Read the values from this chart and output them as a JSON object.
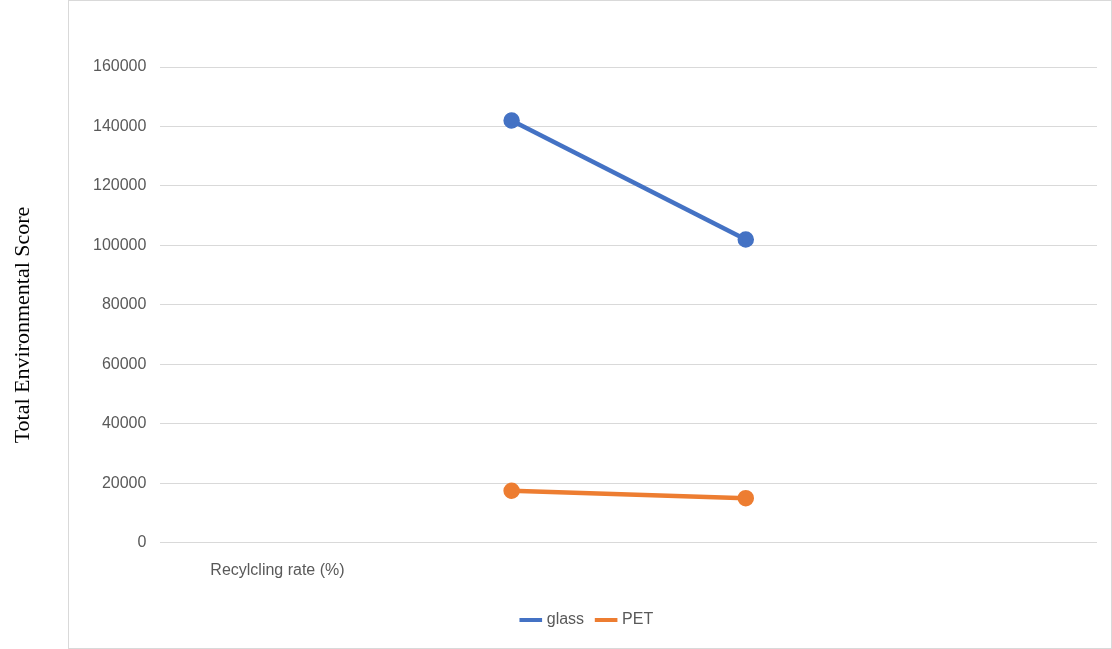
{
  "chart_data": {
    "type": "line",
    "ylabel": "Total Environmental  Score",
    "categories": [
      "Recylcling rate (%)",
      null,
      null,
      null
    ],
    "series": [
      {
        "name": "glass",
        "color": "#4472c4",
        "values": [
          null,
          142000,
          102000,
          null
        ]
      },
      {
        "name": "PET",
        "color": "#ed7d31",
        "values": [
          null,
          17500,
          15000,
          null
        ]
      }
    ],
    "ylim": [
      0,
      160000
    ],
    "yticks": [
      0,
      20000,
      40000,
      60000,
      80000,
      100000,
      120000,
      140000,
      160000
    ],
    "grid": "y",
    "legend": "bottom",
    "marker": "circle",
    "line_style": "solid"
  }
}
